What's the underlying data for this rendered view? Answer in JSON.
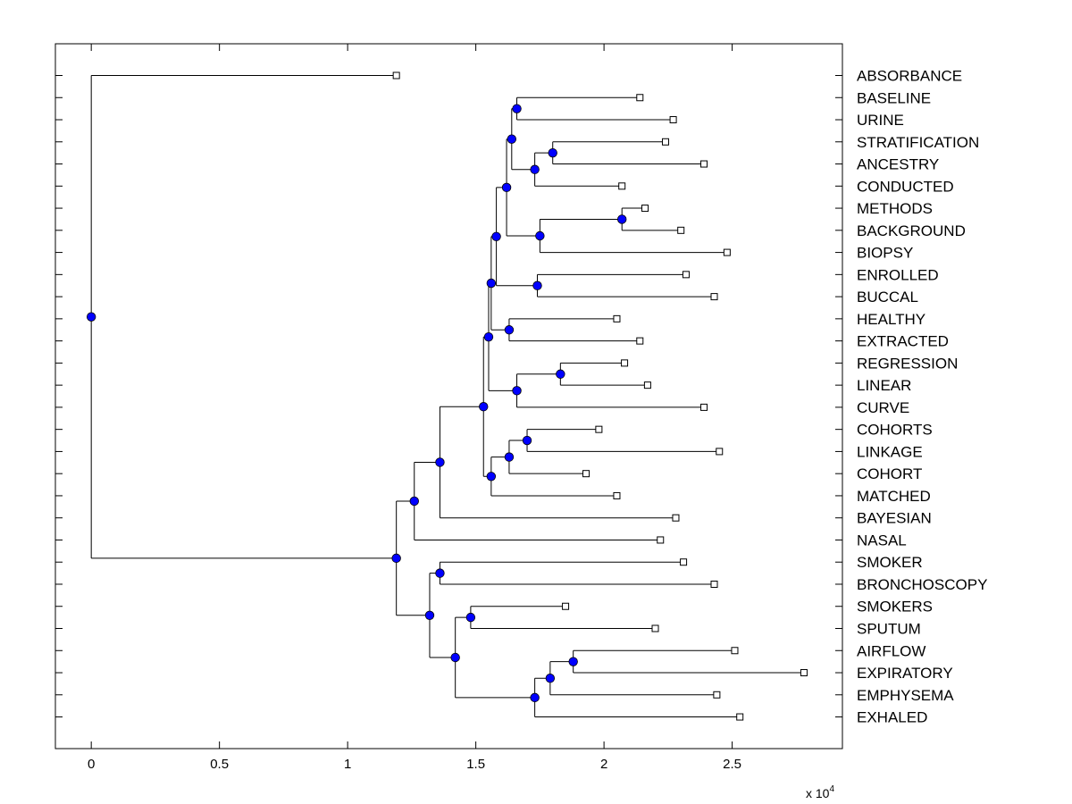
{
  "chart_data": {
    "type": "dendrogram",
    "orientation": "horizontal",
    "xlim": [
      -0.14,
      2.93
    ],
    "x_ticks": [
      0,
      0.5,
      1,
      1.5,
      2,
      2.5
    ],
    "x_tick_labels": [
      "0",
      "0.5",
      "1",
      "1.5",
      "2",
      "2.5"
    ],
    "x_multiplier": "x 10",
    "x_multiplier_exponent": "4",
    "leaves": [
      {
        "name": "ABSORBANCE",
        "value": 1.19
      },
      {
        "name": "BASELINE",
        "value": 2.14
      },
      {
        "name": "URINE",
        "value": 2.27
      },
      {
        "name": "STRATIFICATION",
        "value": 2.24
      },
      {
        "name": "ANCESTRY",
        "value": 2.39
      },
      {
        "name": "CONDUCTED",
        "value": 2.07
      },
      {
        "name": "METHODS",
        "value": 2.16
      },
      {
        "name": "BACKGROUND",
        "value": 2.3
      },
      {
        "name": "BIOPSY",
        "value": 2.48
      },
      {
        "name": "ENROLLED",
        "value": 2.32
      },
      {
        "name": "BUCCAL",
        "value": 2.43
      },
      {
        "name": "HEALTHY",
        "value": 2.05
      },
      {
        "name": "EXTRACTED",
        "value": 2.14
      },
      {
        "name": "REGRESSION",
        "value": 2.08
      },
      {
        "name": "LINEAR",
        "value": 2.17
      },
      {
        "name": "CURVE",
        "value": 2.39
      },
      {
        "name": "COHORTS",
        "value": 1.98
      },
      {
        "name": "LINKAGE",
        "value": 2.45
      },
      {
        "name": "COHORT",
        "value": 1.93
      },
      {
        "name": "MATCHED",
        "value": 2.05
      },
      {
        "name": "BAYESIAN",
        "value": 2.28
      },
      {
        "name": "NASAL",
        "value": 2.22
      },
      {
        "name": "SMOKER",
        "value": 2.31
      },
      {
        "name": "BRONCHOSCOPY",
        "value": 2.43
      },
      {
        "name": "SMOKERS",
        "value": 1.85
      },
      {
        "name": "SPUTUM",
        "value": 2.2
      },
      {
        "name": "AIRFLOW",
        "value": 2.51
      },
      {
        "name": "EXPIRATORY",
        "value": 2.78
      },
      {
        "name": "EMPHYSEMA",
        "value": 2.44
      },
      {
        "name": "EXHALED",
        "value": 2.53
      }
    ],
    "merges": [
      {
        "id": "n1",
        "value": 1.66,
        "children": [
          "BASELINE",
          "URINE"
        ]
      },
      {
        "id": "n2",
        "value": 1.8,
        "children": [
          "STRATIFICATION",
          "ANCESTRY"
        ]
      },
      {
        "id": "n3",
        "value": 1.73,
        "children": [
          "n2",
          "CONDUCTED"
        ]
      },
      {
        "id": "n4",
        "value": 1.64,
        "children": [
          "n1",
          "n3"
        ]
      },
      {
        "id": "n5",
        "value": 2.07,
        "children": [
          "METHODS",
          "BACKGROUND"
        ]
      },
      {
        "id": "n6",
        "value": 1.75,
        "children": [
          "n5",
          "BIOPSY"
        ]
      },
      {
        "id": "n7",
        "value": 1.62,
        "children": [
          "n4",
          "n6"
        ]
      },
      {
        "id": "n8",
        "value": 1.74,
        "children": [
          "ENROLLED",
          "BUCCAL"
        ]
      },
      {
        "id": "n9",
        "value": 1.58,
        "children": [
          "n7",
          "n8"
        ]
      },
      {
        "id": "n10",
        "value": 1.63,
        "children": [
          "HEALTHY",
          "EXTRACTED"
        ]
      },
      {
        "id": "n11",
        "value": 1.56,
        "children": [
          "n9",
          "n10"
        ]
      },
      {
        "id": "n12",
        "value": 1.83,
        "children": [
          "REGRESSION",
          "LINEAR"
        ]
      },
      {
        "id": "n13",
        "value": 1.66,
        "children": [
          "n12",
          "CURVE"
        ]
      },
      {
        "id": "n14",
        "value": 1.55,
        "children": [
          "n11",
          "n13"
        ]
      },
      {
        "id": "n15",
        "value": 1.7,
        "children": [
          "COHORTS",
          "LINKAGE"
        ]
      },
      {
        "id": "n16",
        "value": 1.63,
        "children": [
          "n15",
          "COHORT"
        ]
      },
      {
        "id": "n17",
        "value": 1.56,
        "children": [
          "n16",
          "MATCHED"
        ]
      },
      {
        "id": "n18",
        "value": 1.53,
        "children": [
          "n14",
          "n17"
        ]
      },
      {
        "id": "n19",
        "value": 1.36,
        "children": [
          "n18",
          "BAYESIAN"
        ]
      },
      {
        "id": "n20",
        "value": 1.26,
        "children": [
          "n19",
          "NASAL"
        ]
      },
      {
        "id": "n21",
        "value": 1.36,
        "children": [
          "SMOKER",
          "BRONCHOSCOPY"
        ]
      },
      {
        "id": "n22",
        "value": 1.48,
        "children": [
          "SMOKERS",
          "SPUTUM"
        ]
      },
      {
        "id": "n23",
        "value": 1.88,
        "children": [
          "AIRFLOW",
          "EXPIRATORY"
        ]
      },
      {
        "id": "n24",
        "value": 1.79,
        "children": [
          "n23",
          "EMPHYSEMA"
        ]
      },
      {
        "id": "n25",
        "value": 1.73,
        "children": [
          "n24",
          "EXHALED"
        ]
      },
      {
        "id": "n26",
        "value": 1.42,
        "children": [
          "n22",
          "n25"
        ]
      },
      {
        "id": "n27",
        "value": 1.32,
        "children": [
          "n21",
          "n26"
        ]
      },
      {
        "id": "n28",
        "value": 1.19,
        "children": [
          "n20",
          "n27"
        ]
      },
      {
        "id": "root",
        "value": 0,
        "children": [
          "ABSORBANCE",
          "n28"
        ]
      }
    ],
    "colors": {
      "node_marker": "#0000ff",
      "leaf_marker": "#ffffff",
      "line": "#000000"
    }
  }
}
